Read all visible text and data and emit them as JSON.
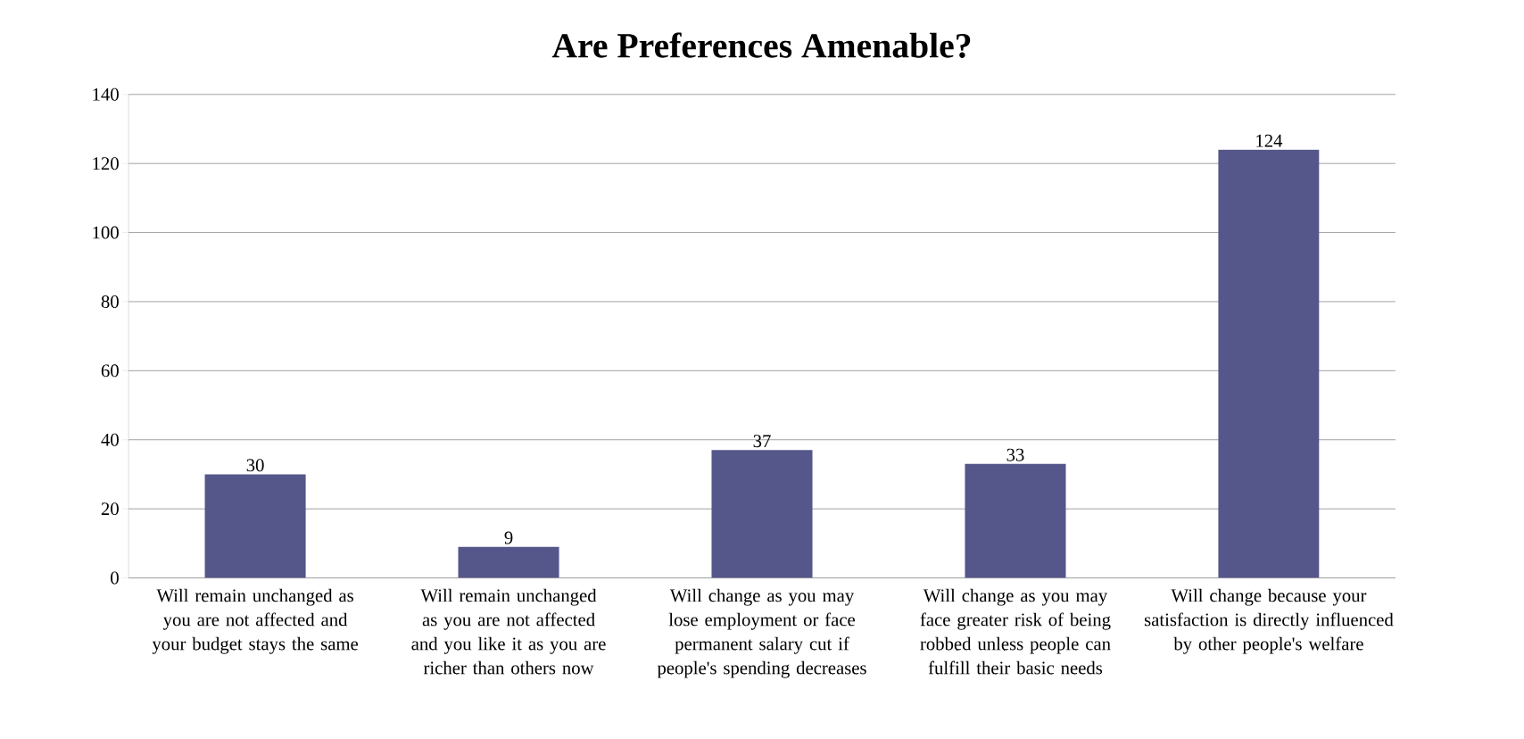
{
  "chart_data": {
    "type": "bar",
    "title": "Are Preferences Amenable?",
    "categories": [
      "Will remain unchanged as you are not affected and your budget stays the same",
      "Will remain unchanged as you are not affected and you like it as you are richer than others now",
      "Will change as you may lose employment or face permanent salary cut if people's spending decreases",
      "Will change as you may face greater risk of being robbed unless people can fulfill their basic needs",
      "Will change because your satisfaction is directly influenced by other people's welfare"
    ],
    "values": [
      30,
      9,
      37,
      33,
      124
    ],
    "color": "#55568a",
    "ylim": [
      0,
      140
    ],
    "yticks": [
      0,
      20,
      40,
      60,
      80,
      100,
      120,
      140
    ],
    "grid": "y",
    "data_labels": true
  }
}
